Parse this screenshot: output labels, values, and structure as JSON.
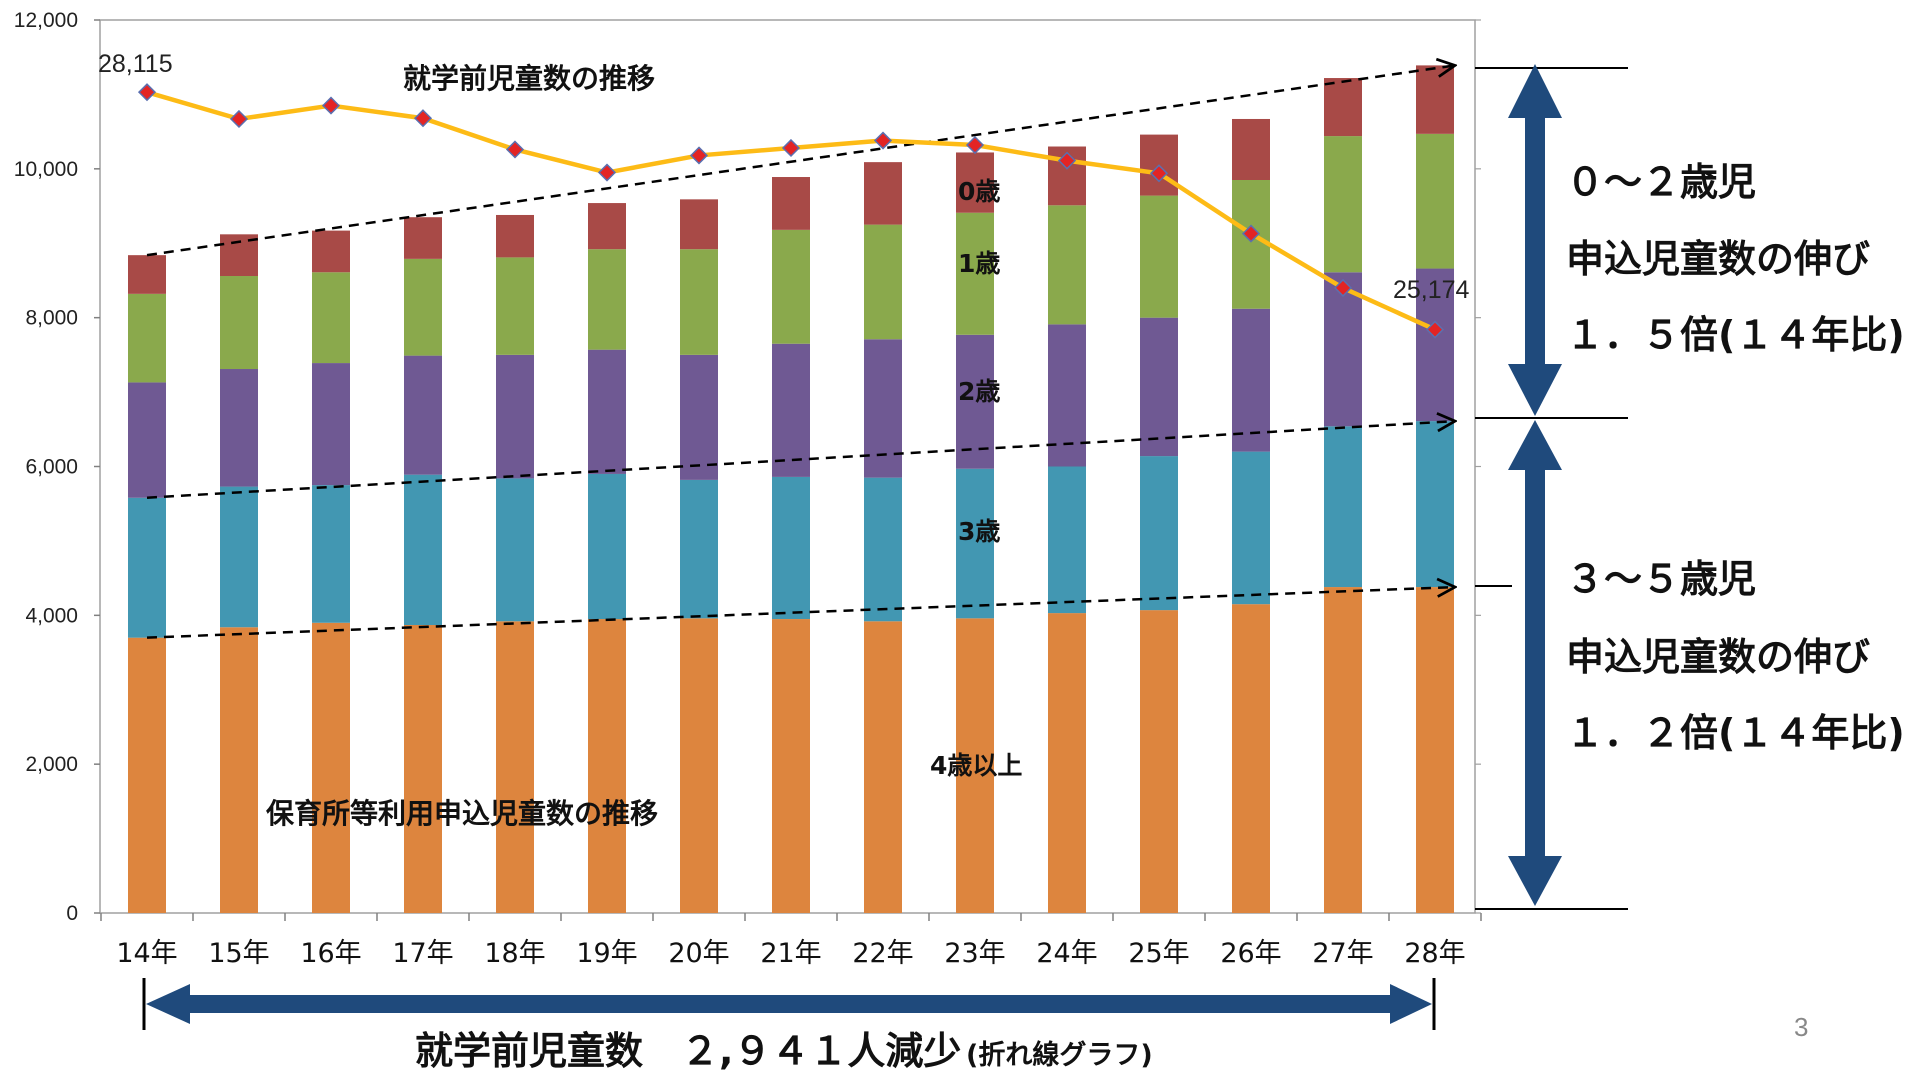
{
  "chart_data": {
    "type": "bar",
    "stacked": true,
    "categories": [
      "14年",
      "15年",
      "16年",
      "17年",
      "18年",
      "19年",
      "20年",
      "21年",
      "22年",
      "23年",
      "24年",
      "25年",
      "26年",
      "27年",
      "28年"
    ],
    "ylim": [
      0,
      12000
    ],
    "yticks": [
      0,
      2000,
      4000,
      6000,
      8000,
      10000,
      12000
    ],
    "ytick_labels": [
      "0",
      "2,000",
      "4,000",
      "6,000",
      "8,000",
      "10,000",
      "12,000"
    ],
    "series": [
      {
        "name": "4歳以上",
        "color": "#dd853e",
        "values": [
          3700,
          3840,
          3900,
          3870,
          3920,
          3950,
          3960,
          3950,
          3920,
          3960,
          4030,
          4070,
          4150,
          4380,
          4380
        ]
      },
      {
        "name": "3歳",
        "color": "#4297b2",
        "values": [
          1880,
          1890,
          1850,
          2020,
          1920,
          1950,
          1860,
          1910,
          1930,
          2010,
          1970,
          2070,
          2050,
          2160,
          2230
        ]
      },
      {
        "name": "2歳",
        "color": "#6f5993",
        "values": [
          1550,
          1580,
          1640,
          1600,
          1660,
          1670,
          1680,
          1790,
          1860,
          1800,
          1910,
          1860,
          1920,
          2070,
          2050
        ]
      },
      {
        "name": "1歳",
        "color": "#8aa94c",
        "values": [
          1190,
          1250,
          1220,
          1300,
          1310,
          1350,
          1420,
          1530,
          1540,
          1640,
          1600,
          1640,
          1730,
          1830,
          1810
        ]
      },
      {
        "name": "0歳",
        "color": "#a84a47",
        "values": [
          520,
          560,
          560,
          560,
          570,
          620,
          670,
          710,
          840,
          810,
          790,
          820,
          820,
          780,
          920
        ]
      }
    ],
    "line": {
      "name": "就学前児童数の推移",
      "color": "#fdbb16",
      "marker_color": "#e32424",
      "values": [
        11030,
        10670,
        10850,
        10680,
        10260,
        9950,
        10180,
        10280,
        10380,
        10320,
        10110,
        9940,
        9130,
        8400,
        7840
      ]
    },
    "point_labels": [
      "28,115",
      "25,174"
    ],
    "title": "就学前児童数の推移",
    "subtitle": "保育所等利用申込児童数の推移"
  },
  "labels": {
    "seg_0": "0歳",
    "seg_1": "1歳",
    "seg_2": "2歳",
    "seg_3": "3歳",
    "seg_4": "4歳以上"
  },
  "right_panel": {
    "upper": {
      "line1": "０～２歳児",
      "line2": "申込児童数の伸び",
      "line3": "１．５倍(１４年比)"
    },
    "lower": {
      "line1": "３～５歳児",
      "line2": "申込児童数の伸び",
      "line3": "１．２倍(１４年比)"
    },
    "arrow_color": "#1f4a7c"
  },
  "footer": {
    "main": "就学前児童数　２,９４１人減少",
    "note": "(折れ線グラフ)"
  },
  "page_number": "3"
}
